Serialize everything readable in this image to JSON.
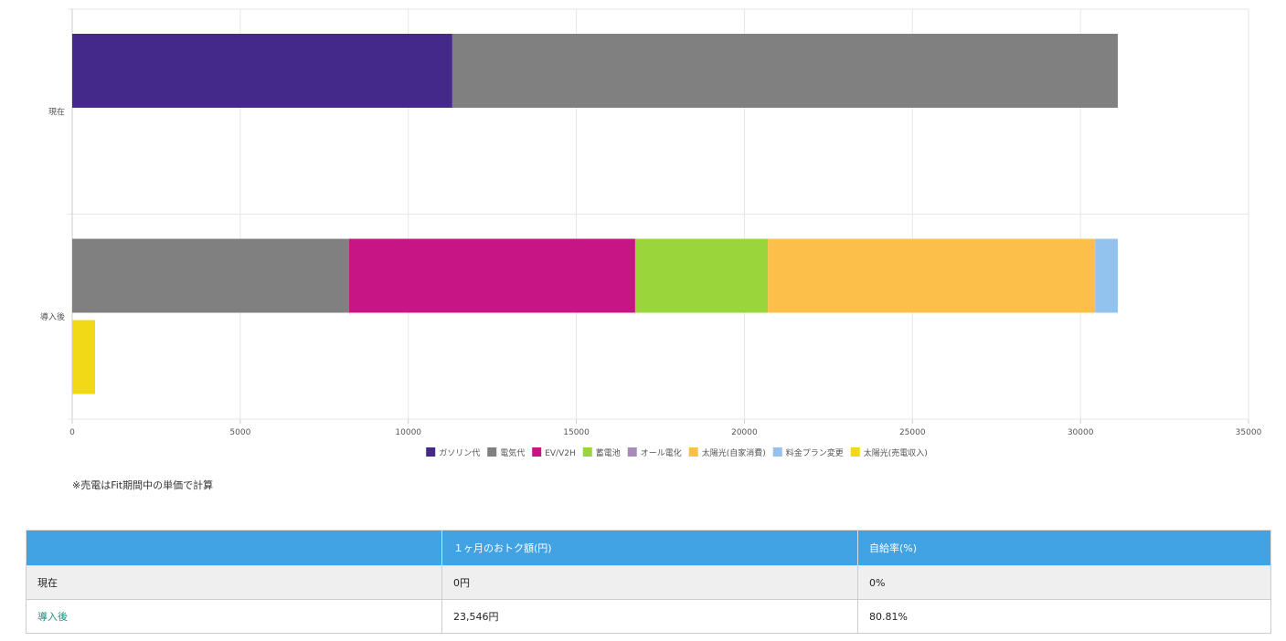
{
  "chart_data": {
    "type": "bar",
    "orientation": "horizontal",
    "stacked": true,
    "categories": [
      "現在",
      "導入後"
    ],
    "xlim": [
      0,
      35000
    ],
    "xticks": [
      0,
      5000,
      10000,
      15000,
      20000,
      25000,
      30000,
      35000
    ],
    "grid": true,
    "legend_position": "bottom",
    "series": [
      {
        "name": "ガソリン代",
        "color": "#44288a",
        "stack": 1,
        "values": [
          11310,
          0
        ]
      },
      {
        "name": "電気代",
        "color": "#808080",
        "stack": 1,
        "values": [
          19800,
          8240
        ]
      },
      {
        "name": "EV/V2H",
        "color": "#c71585",
        "stack": 1,
        "values": [
          0,
          8510
        ]
      },
      {
        "name": "蓄電池",
        "color": "#9bd53c",
        "stack": 1,
        "values": [
          0,
          3950
        ]
      },
      {
        "name": "オール電化",
        "color": "#a98bbb",
        "stack": 1,
        "values": [
          0,
          0
        ]
      },
      {
        "name": "太陽光(自家消費)",
        "color": "#fcbf4a",
        "stack": 1,
        "values": [
          0,
          9740
        ]
      },
      {
        "name": "料金プラン変更",
        "color": "#92c3ef",
        "stack": 1,
        "values": [
          0,
          670
        ]
      },
      {
        "name": "太陽光(売電収入)",
        "color": "#f1d918",
        "stack": 2,
        "values": [
          0,
          680
        ]
      }
    ]
  },
  "note": "※売電はFit期間中の単価で計算",
  "table": {
    "headers": [
      "",
      "１ヶ月のおトク額(円)",
      "自給率(%)"
    ],
    "rows": [
      [
        "現在",
        "0円",
        "0%"
      ],
      [
        "導入後",
        "23,546円",
        "80.81%"
      ]
    ]
  }
}
